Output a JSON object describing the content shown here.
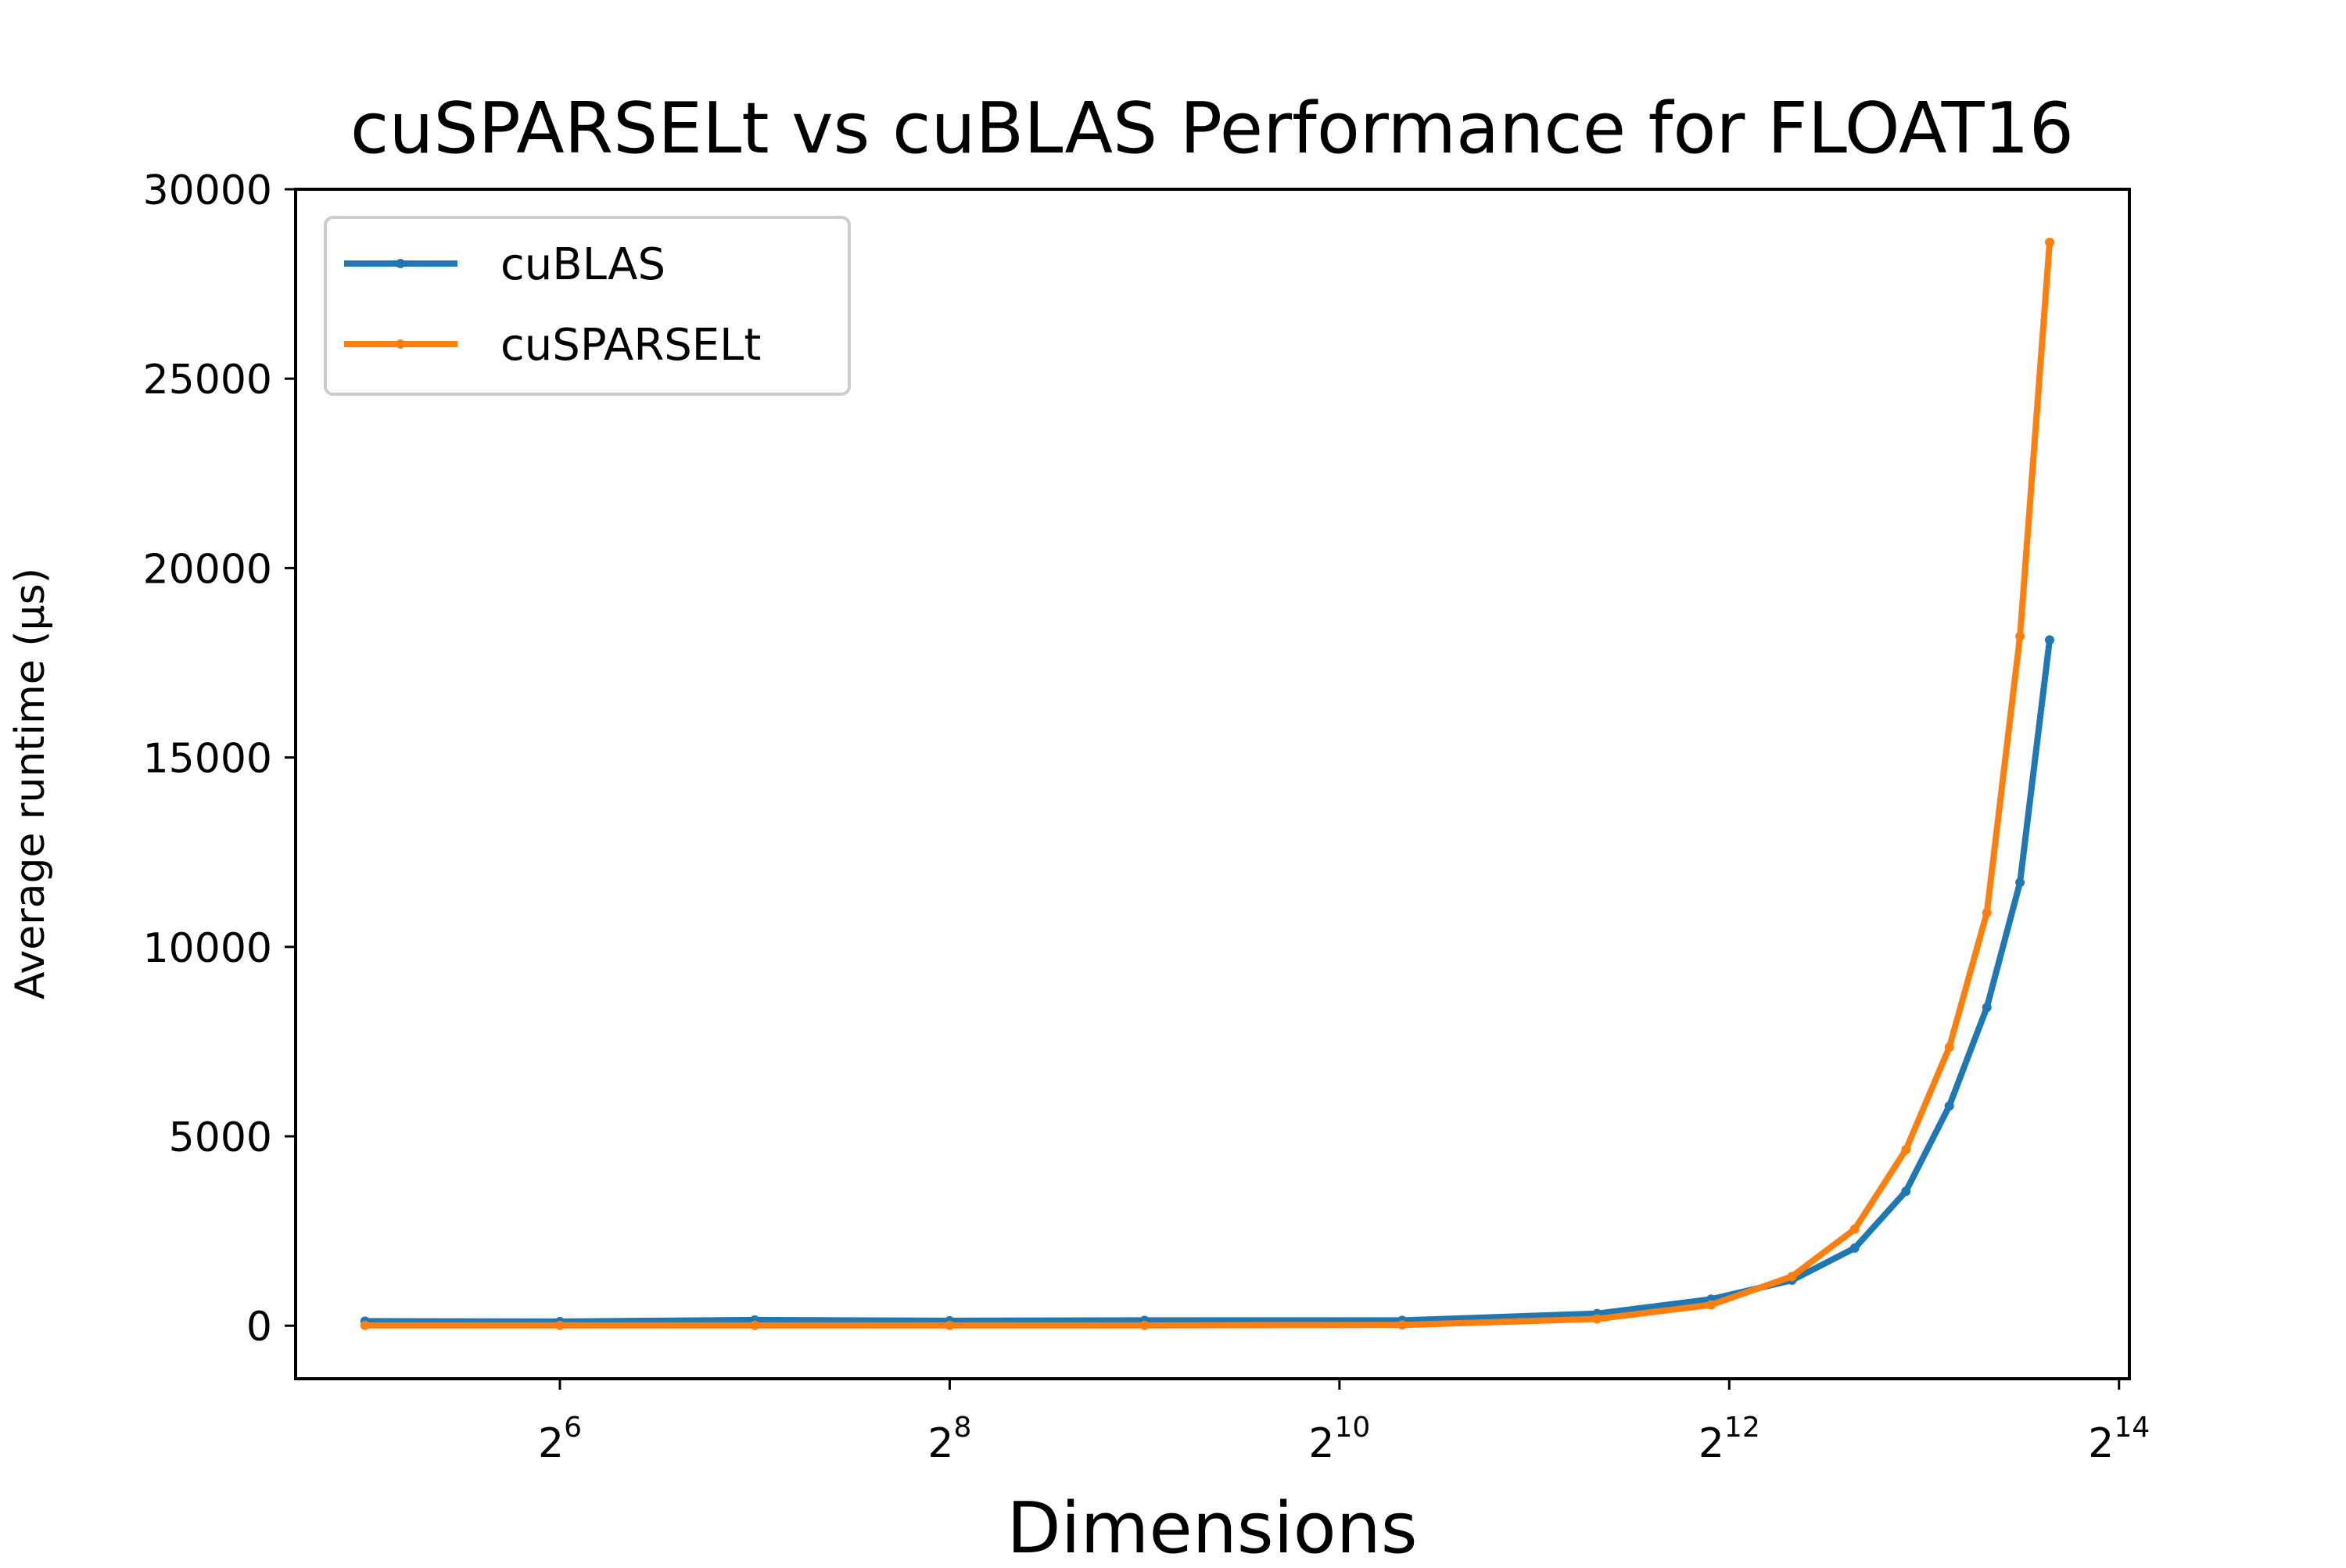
{
  "chart_data": {
    "type": "line",
    "title": "cuSPARSELt vs cuBLAS Performance for FLOAT16",
    "xlabel": "Dimensions",
    "ylabel": "Average runtime (μs)",
    "x_scale": "log2",
    "xlim": [
      25,
      17000
    ],
    "ylim": [
      -1400,
      30000
    ],
    "x_ticks": [
      {
        "value": 64,
        "base": "2",
        "exp": "6"
      },
      {
        "value": 256,
        "base": "2",
        "exp": "8"
      },
      {
        "value": 1024,
        "base": "2",
        "exp": "10"
      },
      {
        "value": 4096,
        "base": "2",
        "exp": "12"
      },
      {
        "value": 16384,
        "base": "2",
        "exp": "14"
      }
    ],
    "y_ticks": [
      {
        "value": 0,
        "label": "0"
      },
      {
        "value": 5000,
        "label": "5000"
      },
      {
        "value": 10000,
        "label": "10000"
      },
      {
        "value": 15000,
        "label": "15000"
      },
      {
        "value": 20000,
        "label": "20000"
      },
      {
        "value": 25000,
        "label": "25000"
      },
      {
        "value": 30000,
        "label": "30000"
      }
    ],
    "legend_position": "top-left",
    "grid": false,
    "series": [
      {
        "name": "cuBLAS",
        "color": "#1f77b4",
        "points": [
          [
            32,
            120
          ],
          [
            64,
            110
          ],
          [
            128,
            150
          ],
          [
            256,
            130
          ],
          [
            512,
            140
          ],
          [
            1280,
            140
          ],
          [
            2560,
            320
          ],
          [
            3840,
            700
          ],
          [
            5120,
            1200
          ],
          [
            6400,
            2050
          ],
          [
            7680,
            3550
          ],
          [
            8960,
            5800
          ],
          [
            10240,
            8400
          ],
          [
            11520,
            11700
          ],
          [
            12800,
            18100
          ]
        ]
      },
      {
        "name": "cuSPARSELt",
        "color": "#ff7f0e",
        "points": [
          [
            32,
            10
          ],
          [
            64,
            10
          ],
          [
            128,
            10
          ],
          [
            256,
            10
          ],
          [
            512,
            10
          ],
          [
            1280,
            20
          ],
          [
            2560,
            180
          ],
          [
            3840,
            550
          ],
          [
            5120,
            1300
          ],
          [
            6400,
            2550
          ],
          [
            7680,
            4650
          ],
          [
            8960,
            7350
          ],
          [
            10240,
            10900
          ],
          [
            11520,
            18200
          ],
          [
            12800,
            28600
          ]
        ]
      }
    ]
  }
}
